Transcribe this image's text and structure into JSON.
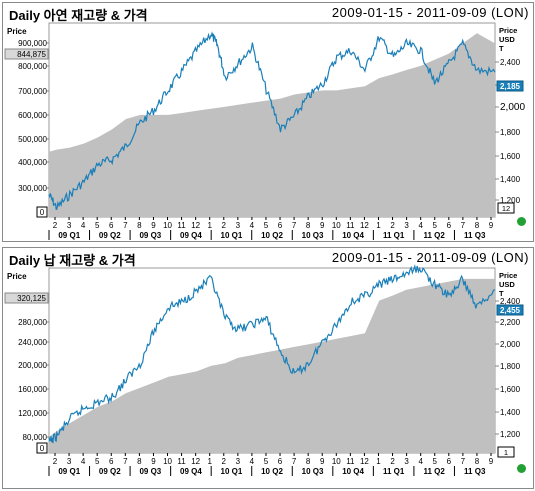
{
  "charts": [
    {
      "title": "Daily 아연 재고량 & 가격",
      "date_range": "2009-01-15 - 2011-09-09 (LON)",
      "left_axis_label": "Price",
      "right_axis_label_lines": [
        "Price",
        "USD",
        "T"
      ],
      "left_ticks": [
        "300,000",
        "400,000",
        "500,000",
        "600,000",
        "700,000",
        "800,000",
        "900,000"
      ],
      "left_zero": "0",
      "right_ticks": [
        "1,200",
        "1,400",
        "1,600",
        "1,800",
        "2,000",
        "2,200",
        "2,400"
      ],
      "right_extra": "12",
      "left_current": "844,875",
      "right_current": "2,185",
      "month_labels": [
        "2",
        "3",
        "4",
        "5",
        "6",
        "7",
        "8",
        "9",
        "10",
        "11",
        "12",
        "1",
        "2",
        "3",
        "4",
        "5",
        "6",
        "7",
        "8",
        "9",
        "10",
        "11",
        "12",
        "1",
        "2",
        "3",
        "4",
        "5",
        "6",
        "7",
        "8",
        "9"
      ],
      "quarter_labels": [
        "09 Q1",
        "09 Q2",
        "09 Q3",
        "09 Q4",
        "10 Q1",
        "10 Q2",
        "10 Q3",
        "10 Q4",
        "11 Q1",
        "11 Q2",
        "11 Q3"
      ]
    },
    {
      "title": "Daily 납 재고량 & 가격",
      "date_range": "2009-01-15 - 2011-09-09 (LON)",
      "left_axis_label": "Price",
      "right_axis_label_lines": [
        "Price",
        "USD",
        "T"
      ],
      "left_ticks": [
        "80,000",
        "120,000",
        "160,000",
        "200,000",
        "240,000",
        "280,000"
      ],
      "left_zero": "0",
      "right_ticks": [
        "1,200",
        "1,400",
        "1,600",
        "1,800",
        "2,000",
        "2,200",
        "2,400"
      ],
      "right_extra": "1",
      "left_current": "320,125",
      "right_current": "2,455",
      "month_labels": [
        "2",
        "3",
        "4",
        "5",
        "6",
        "7",
        "8",
        "9",
        "10",
        "11",
        "12",
        "1",
        "2",
        "3",
        "4",
        "5",
        "6",
        "7",
        "8",
        "9",
        "10",
        "11",
        "12",
        "1",
        "2",
        "3",
        "4",
        "5",
        "6",
        "7",
        "8",
        "9"
      ],
      "quarter_labels": [
        "09 Q1",
        "09 Q2",
        "09 Q3",
        "09 Q4",
        "10 Q1",
        "10 Q2",
        "10 Q3",
        "10 Q4",
        "11 Q1",
        "11 Q2",
        "11 Q3"
      ]
    }
  ],
  "chart_data": [
    {
      "type": "area",
      "title": "Daily 아연 재고량 & 가격",
      "x_range": [
        "2009-01-15",
        "2011-09-09"
      ],
      "left_axis": {
        "label": "Price",
        "ylim": [
          0,
          950000
        ]
      },
      "right_axis": {
        "label": "Price USD T",
        "ylim": [
          1080,
          2560
        ]
      },
      "series": [
        {
          "axis": "left",
          "style": "area",
          "color": "#c0c0c0",
          "x": [
            "2009-01-15",
            "2009-02-01",
            "2009-03-01",
            "2009-04-01",
            "2009-05-01",
            "2009-06-01",
            "2009-07-01",
            "2009-08-01",
            "2009-09-01",
            "2009-10-01",
            "2009-11-01",
            "2009-12-01",
            "2010-01-01",
            "2010-02-01",
            "2010-03-01",
            "2010-04-01",
            "2010-05-01",
            "2010-06-01",
            "2010-07-01",
            "2010-08-01",
            "2010-09-01",
            "2010-10-01",
            "2010-11-01",
            "2010-12-01",
            "2011-01-01",
            "2011-02-01",
            "2011-03-01",
            "2011-04-01",
            "2011-05-01",
            "2011-06-01",
            "2011-07-01",
            "2011-08-01",
            "2011-09-09"
          ],
          "values": [
            320000,
            330000,
            340000,
            360000,
            390000,
            430000,
            480000,
            500000,
            500000,
            500000,
            510000,
            520000,
            530000,
            540000,
            550000,
            560000,
            570000,
            580000,
            600000,
            610000,
            620000,
            620000,
            630000,
            640000,
            680000,
            700000,
            720000,
            740000,
            770000,
            800000,
            850000,
            900000,
            850000
          ]
        },
        {
          "axis": "right",
          "style": "line",
          "color": "#1a7fb8",
          "x": [
            "2009-01-15",
            "2009-02-01",
            "2009-03-01",
            "2009-04-01",
            "2009-05-01",
            "2009-06-01",
            "2009-07-01",
            "2009-08-01",
            "2009-09-01",
            "2009-10-01",
            "2009-11-01",
            "2009-12-01",
            "2010-01-01",
            "2010-01-15",
            "2010-02-01",
            "2010-03-01",
            "2010-04-01",
            "2010-05-01",
            "2010-06-01",
            "2010-07-01",
            "2010-08-01",
            "2010-09-01",
            "2010-10-01",
            "2010-11-01",
            "2010-12-01",
            "2011-01-01",
            "2011-02-01",
            "2011-03-01",
            "2011-04-01",
            "2011-05-01",
            "2011-06-01",
            "2011-07-01",
            "2011-08-01",
            "2011-09-09"
          ],
          "values": [
            1250,
            1150,
            1250,
            1350,
            1480,
            1520,
            1620,
            1800,
            1900,
            2050,
            2200,
            2350,
            2480,
            2390,
            2150,
            2250,
            2380,
            2050,
            1750,
            1850,
            2000,
            2100,
            2300,
            2350,
            2200,
            2450,
            2300,
            2400,
            2350,
            2100,
            2250,
            2400,
            2200,
            2185
          ]
        }
      ]
    },
    {
      "type": "area",
      "title": "Daily 납 재고량 & 가격",
      "x_range": [
        "2009-01-15",
        "2011-09-09"
      ],
      "left_axis": {
        "label": "Price",
        "ylim": [
          0,
          340000
        ]
      },
      "right_axis": {
        "label": "Price USD T",
        "ylim": [
          1000,
          2650
        ]
      },
      "series": [
        {
          "axis": "left",
          "style": "area",
          "color": "#c0c0c0",
          "x": [
            "2009-01-15",
            "2009-02-01",
            "2009-03-01",
            "2009-04-01",
            "2009-05-01",
            "2009-06-01",
            "2009-07-01",
            "2009-08-01",
            "2009-09-01",
            "2009-10-01",
            "2009-11-01",
            "2009-12-01",
            "2010-01-01",
            "2010-02-01",
            "2010-03-01",
            "2010-04-01",
            "2010-05-01",
            "2010-06-01",
            "2010-07-01",
            "2010-08-01",
            "2010-09-01",
            "2010-10-01",
            "2010-11-01",
            "2010-12-01",
            "2011-01-01",
            "2011-02-01",
            "2011-03-01",
            "2011-04-01",
            "2011-05-01",
            "2011-06-01",
            "2011-07-01",
            "2011-08-01",
            "2011-09-09"
          ],
          "values": [
            30000,
            40000,
            55000,
            70000,
            85000,
            95000,
            110000,
            120000,
            130000,
            140000,
            145000,
            150000,
            160000,
            165000,
            175000,
            180000,
            185000,
            190000,
            195000,
            200000,
            205000,
            210000,
            215000,
            220000,
            280000,
            290000,
            300000,
            305000,
            310000,
            315000,
            320000,
            320000,
            320000
          ]
        },
        {
          "axis": "right",
          "style": "line",
          "color": "#1a7fb8",
          "x": [
            "2009-01-15",
            "2009-02-01",
            "2009-03-01",
            "2009-04-01",
            "2009-05-01",
            "2009-06-01",
            "2009-07-01",
            "2009-08-01",
            "2009-09-01",
            "2009-10-01",
            "2009-11-01",
            "2009-12-01",
            "2010-01-01",
            "2010-02-01",
            "2010-03-01",
            "2010-04-01",
            "2010-05-01",
            "2010-06-01",
            "2010-07-01",
            "2010-08-01",
            "2010-09-01",
            "2010-10-01",
            "2010-11-01",
            "2010-12-01",
            "2011-01-01",
            "2011-02-01",
            "2011-03-01",
            "2011-04-01",
            "2011-05-01",
            "2011-06-01",
            "2011-07-01",
            "2011-08-01",
            "2011-09-09"
          ],
          "values": [
            1100,
            1150,
            1300,
            1400,
            1450,
            1500,
            1650,
            1800,
            2100,
            2300,
            2350,
            2450,
            2550,
            2200,
            2100,
            2150,
            2200,
            1900,
            1700,
            1800,
            2000,
            2150,
            2350,
            2400,
            2500,
            2550,
            2600,
            2650,
            2500,
            2400,
            2550,
            2300,
            2455
          ]
        }
      ]
    }
  ]
}
